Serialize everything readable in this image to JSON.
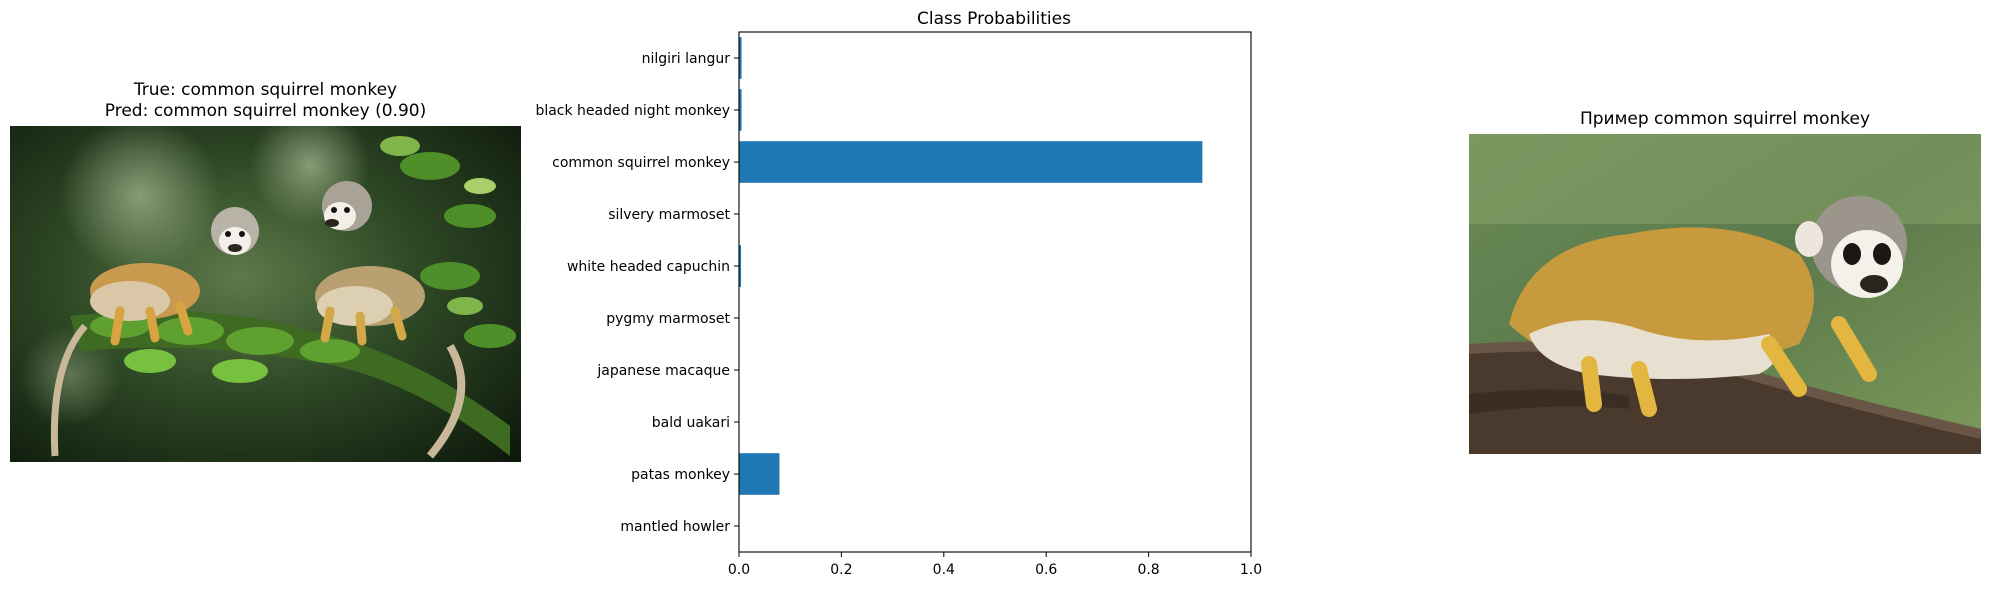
{
  "left_panel": {
    "title_line1": "True: common squirrel monkey",
    "title_line2": "Pred: common squirrel monkey (0.90)"
  },
  "right_panel": {
    "title": "Пример common squirrel monkey"
  },
  "colors": {
    "bar": "#1f77b4"
  },
  "chart_data": {
    "type": "bar",
    "orientation": "horizontal",
    "title": "Class Probabilities",
    "xlabel": "",
    "ylabel": "",
    "xlim": [
      0,
      1.0
    ],
    "xticks": [
      "0.0",
      "0.2",
      "0.4",
      "0.6",
      "0.8",
      "1.0"
    ],
    "categories": [
      "nilgiri langur",
      "black headed night monkey",
      "common squirrel monkey",
      "silvery marmoset",
      "white headed capuchin",
      "pygmy marmoset",
      "japanese macaque",
      "bald uakari",
      "patas monkey",
      "mantled howler"
    ],
    "values": [
      0.005,
      0.005,
      0.905,
      0.0008,
      0.004,
      0.0005,
      0.0005,
      0.0005,
      0.079,
      0.0008
    ],
    "grid": false,
    "legend": "none"
  }
}
